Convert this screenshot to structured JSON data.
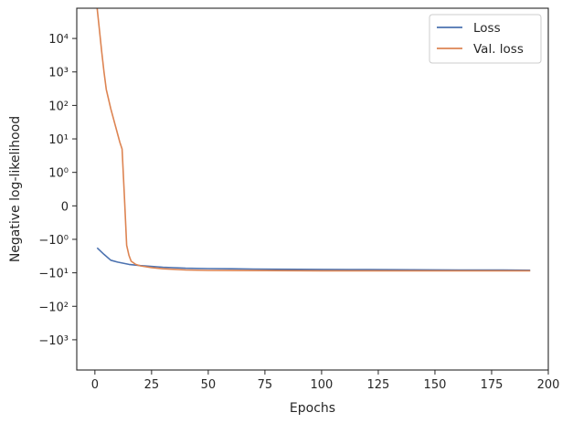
{
  "chart_data": {
    "type": "line",
    "title": "",
    "xlabel": "Epochs",
    "ylabel": "Negative log-likelihood",
    "yscale": "symlog",
    "grid": false,
    "legend_position": "top-right",
    "xlim": [
      -8,
      200
    ],
    "ylim": [
      -8000,
      80000
    ],
    "x_ticks": [
      0,
      25,
      50,
      75,
      100,
      125,
      150,
      175,
      200
    ],
    "x_tick_labels": [
      "0",
      "25",
      "50",
      "75",
      "100",
      "125",
      "150",
      "175",
      "200"
    ],
    "y_ticks": [
      -1000,
      -100,
      -10,
      -1,
      0,
      1,
      10,
      100,
      1000,
      10000
    ],
    "y_tick_labels": [
      "−10³",
      "−10²",
      "−10¹",
      "−10⁰",
      "0",
      "10⁰",
      "10¹",
      "10²",
      "10³",
      "10⁴"
    ],
    "series": [
      {
        "name": "Loss",
        "color": "#4c72b0",
        "x": [
          1,
          4,
          7,
          10,
          15,
          20,
          30,
          40,
          50,
          60,
          70,
          80,
          100,
          120,
          140,
          160,
          180,
          192
        ],
        "y": [
          -1.8,
          -2.8,
          -4.2,
          -4.8,
          -5.6,
          -6.1,
          -6.8,
          -7.3,
          -7.5,
          -7.6,
          -7.7,
          -7.8,
          -7.9,
          -8.0,
          -8.1,
          -8.2,
          -8.3,
          -8.4
        ]
      },
      {
        "name": "Val. loss",
        "color": "#dd8452",
        "x": [
          1,
          2,
          3,
          4,
          5,
          7,
          9,
          11,
          12,
          13,
          14,
          15,
          16,
          18,
          20,
          25,
          30,
          40,
          50,
          75,
          100,
          125,
          150,
          175,
          192
        ],
        "y": [
          80000,
          18000,
          4000,
          1000,
          300,
          80,
          25,
          8,
          5,
          0.3,
          -1.5,
          -3.0,
          -4.5,
          -5.6,
          -6.2,
          -7.0,
          -7.6,
          -8.2,
          -8.5,
          -8.6,
          -8.7,
          -8.7,
          -8.7,
          -8.7,
          -8.7
        ]
      }
    ]
  }
}
